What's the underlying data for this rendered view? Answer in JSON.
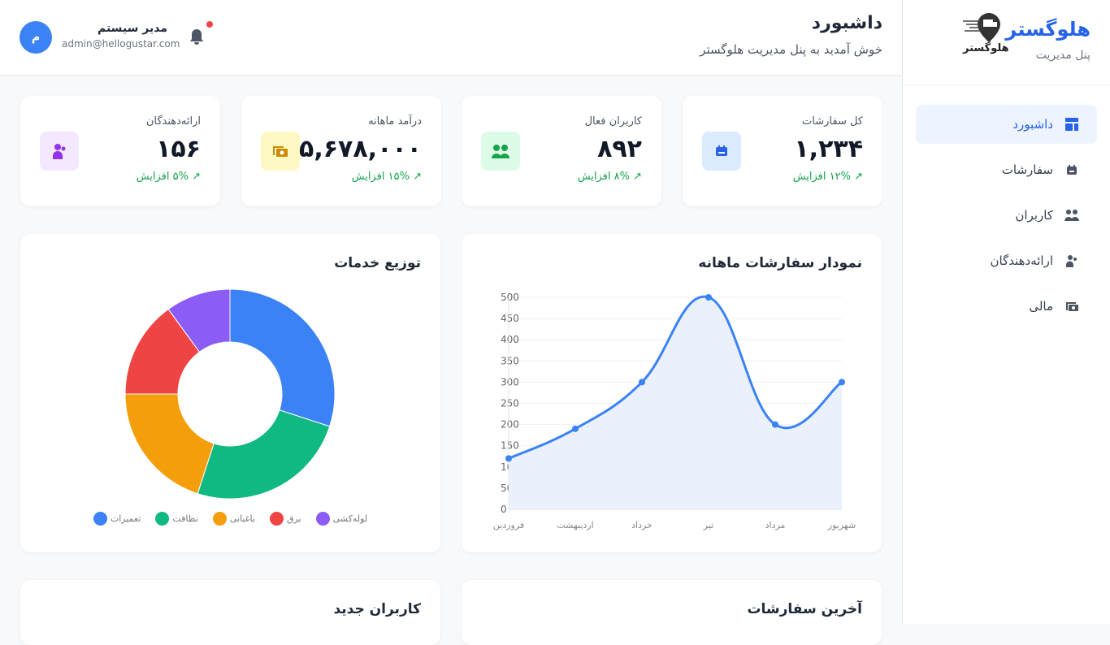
{
  "sidebar": {
    "brand": "هلوگستر",
    "subtitle": "پنل مدیریت",
    "logo_text": "هلوگستر",
    "items": [
      {
        "label": "داشبورد",
        "icon": "dashboard-icon"
      },
      {
        "label": "سفارشات",
        "icon": "orders-icon"
      },
      {
        "label": "کاربران",
        "icon": "users-icon"
      },
      {
        "label": "ارائه‌دهندگان",
        "icon": "providers-icon"
      },
      {
        "label": "مالی",
        "icon": "finance-icon"
      }
    ]
  },
  "header": {
    "title": "داشبورد",
    "subtitle": "خوش آمدید به پنل مدیریت هلوگستر",
    "user_name": "مدیر سیستم",
    "user_email": "admin@hellogustar.com",
    "avatar_letter": "م"
  },
  "stats": [
    {
      "label": "کل سفارشات",
      "value": "۱,۲۳۴",
      "trend": "↗ ۱۲% افزایش",
      "icon": "orders-icon",
      "color": "#2563eb",
      "bg": "#dbeafe"
    },
    {
      "label": "کاربران فعال",
      "value": "۸۹۲",
      "trend": "↗ ۸% افزایش",
      "icon": "users-icon",
      "color": "#16a34a",
      "bg": "#dcfce7"
    },
    {
      "label": "درآمد ماهانه",
      "value": "۴۵,۶۷۸,۰۰۰",
      "trend": "↗ ۱۵% افزایش",
      "icon": "money-icon",
      "color": "#ca8a04",
      "bg": "#fef9c3"
    },
    {
      "label": "ارائه‌دهندگان",
      "value": "۱۵۶",
      "trend": "↗ ۵% افزایش",
      "icon": "providers-icon",
      "color": "#9333ea",
      "bg": "#f3e8ff"
    }
  ],
  "line_card": {
    "title": "نمودار سفارشات ماهانه"
  },
  "donut_card": {
    "title": "توزیع خدمات"
  },
  "bottom": {
    "orders_title": "آخرین سفارشات",
    "users_title": "کاربران جدید"
  },
  "chart_data": [
    {
      "type": "line",
      "categories": [
        "فروردین",
        "اردیبهشت",
        "خرداد",
        "تیر",
        "مرداد",
        "شهریور"
      ],
      "values": [
        120,
        190,
        300,
        500,
        200,
        300
      ],
      "ylim": [
        0,
        500
      ],
      "yticks": [
        0,
        50,
        100,
        150,
        200,
        250,
        300,
        350,
        400,
        450,
        500
      ],
      "grid": true,
      "color": "#3b82f6",
      "fill": "#eaf1fd"
    },
    {
      "type": "pie",
      "donut": true,
      "categories": [
        "تعمیرات",
        "نظافت",
        "باغبانی",
        "برق",
        "لوله‌کشی"
      ],
      "values": [
        30,
        25,
        20,
        15,
        10
      ],
      "colors": [
        "#3b82f6",
        "#10b981",
        "#f59e0b",
        "#ef4444",
        "#8b5cf6"
      ],
      "legend": "bottom"
    }
  ]
}
